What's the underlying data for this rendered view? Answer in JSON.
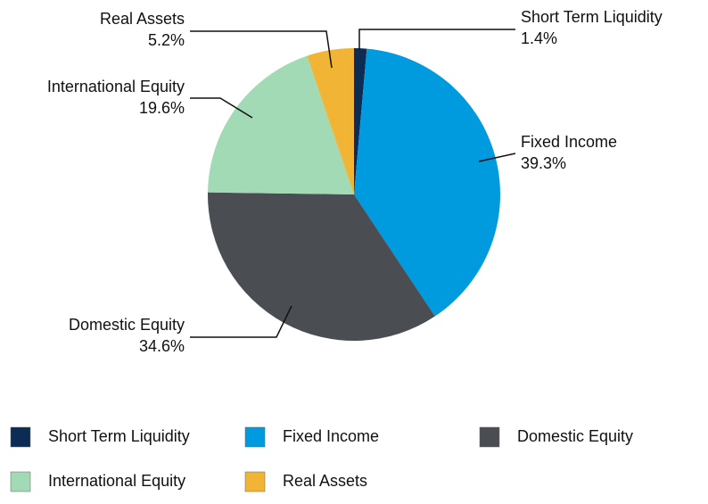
{
  "chart_data": {
    "type": "pie",
    "categories": [
      "Short Term Liquidity",
      "Fixed Income",
      "Domestic Equity",
      "International Equity",
      "Real Assets"
    ],
    "values": [
      1.4,
      39.3,
      34.6,
      19.6,
      5.2
    ],
    "value_labels": [
      "1.4%",
      "39.3%",
      "34.6%",
      "19.6%",
      "5.2%"
    ],
    "colors": [
      "#0d2c54",
      "#009ade",
      "#4a4d52",
      "#a1dab4",
      "#f1b434"
    ],
    "legend": "bottom"
  }
}
